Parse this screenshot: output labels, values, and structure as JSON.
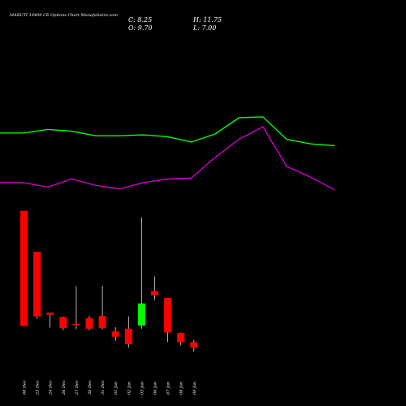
{
  "header": {
    "title": "MARUTI 19400  CE Options  Chart MunafaSutra.com",
    "close_label": "C: 8.25",
    "open_label": "O: 9.70",
    "high_label": "H: 11.75",
    "low_label": "L: 7.00"
  },
  "colors": {
    "background": "#000000",
    "up": "#00ff00",
    "down": "#ff0000",
    "line_upper": "#00ff00",
    "line_lower": "#cc00cc",
    "wick": "#ffffff",
    "text": "#ffffff"
  },
  "chart_data": [
    {
      "type": "line",
      "series": [
        {
          "values": [
            65,
            65,
            69,
            67,
            62,
            62,
            63,
            61,
            55,
            64,
            82,
            83,
            58,
            53,
            51
          ]
        },
        {
          "values": [
            10,
            10,
            5,
            14,
            7,
            3,
            10,
            14,
            15,
            38,
            58,
            72,
            28,
            16,
            2
          ]
        }
      ],
      "ylim": [
        0,
        100
      ]
    },
    {
      "type": "candlestick",
      "categories": [
        "08 Dec",
        "23 Dec",
        "24 Dec",
        "26 Dec",
        "27 Dec",
        "30 Dec",
        "31 Dec",
        "01 Jan",
        "02 Jan",
        "03 Jan",
        "06 Jan",
        "07 Jan",
        "08 Jan",
        "09 Jan"
      ],
      "open": [
        108,
        70,
        13.5,
        9.5,
        3,
        8.5,
        10.5,
        -4,
        -1.5,
        1.5,
        33.5,
        27,
        -5.5,
        -14
      ],
      "high": [
        108,
        70,
        13.5,
        10,
        38,
        10.5,
        38.5,
        0,
        10,
        102,
        47,
        27,
        -5,
        -12
      ],
      "low": [
        1,
        7.5,
        -0.5,
        -3,
        -2,
        -3,
        -2,
        -13,
        -19,
        -1.5,
        25,
        -14,
        -17,
        -23
      ],
      "close": [
        1,
        10,
        11.5,
        -1,
        2,
        -1.5,
        -1,
        -9,
        -16,
        22,
        29.5,
        -5,
        -14,
        -19
      ],
      "ylim": [
        -25,
        110
      ]
    }
  ]
}
